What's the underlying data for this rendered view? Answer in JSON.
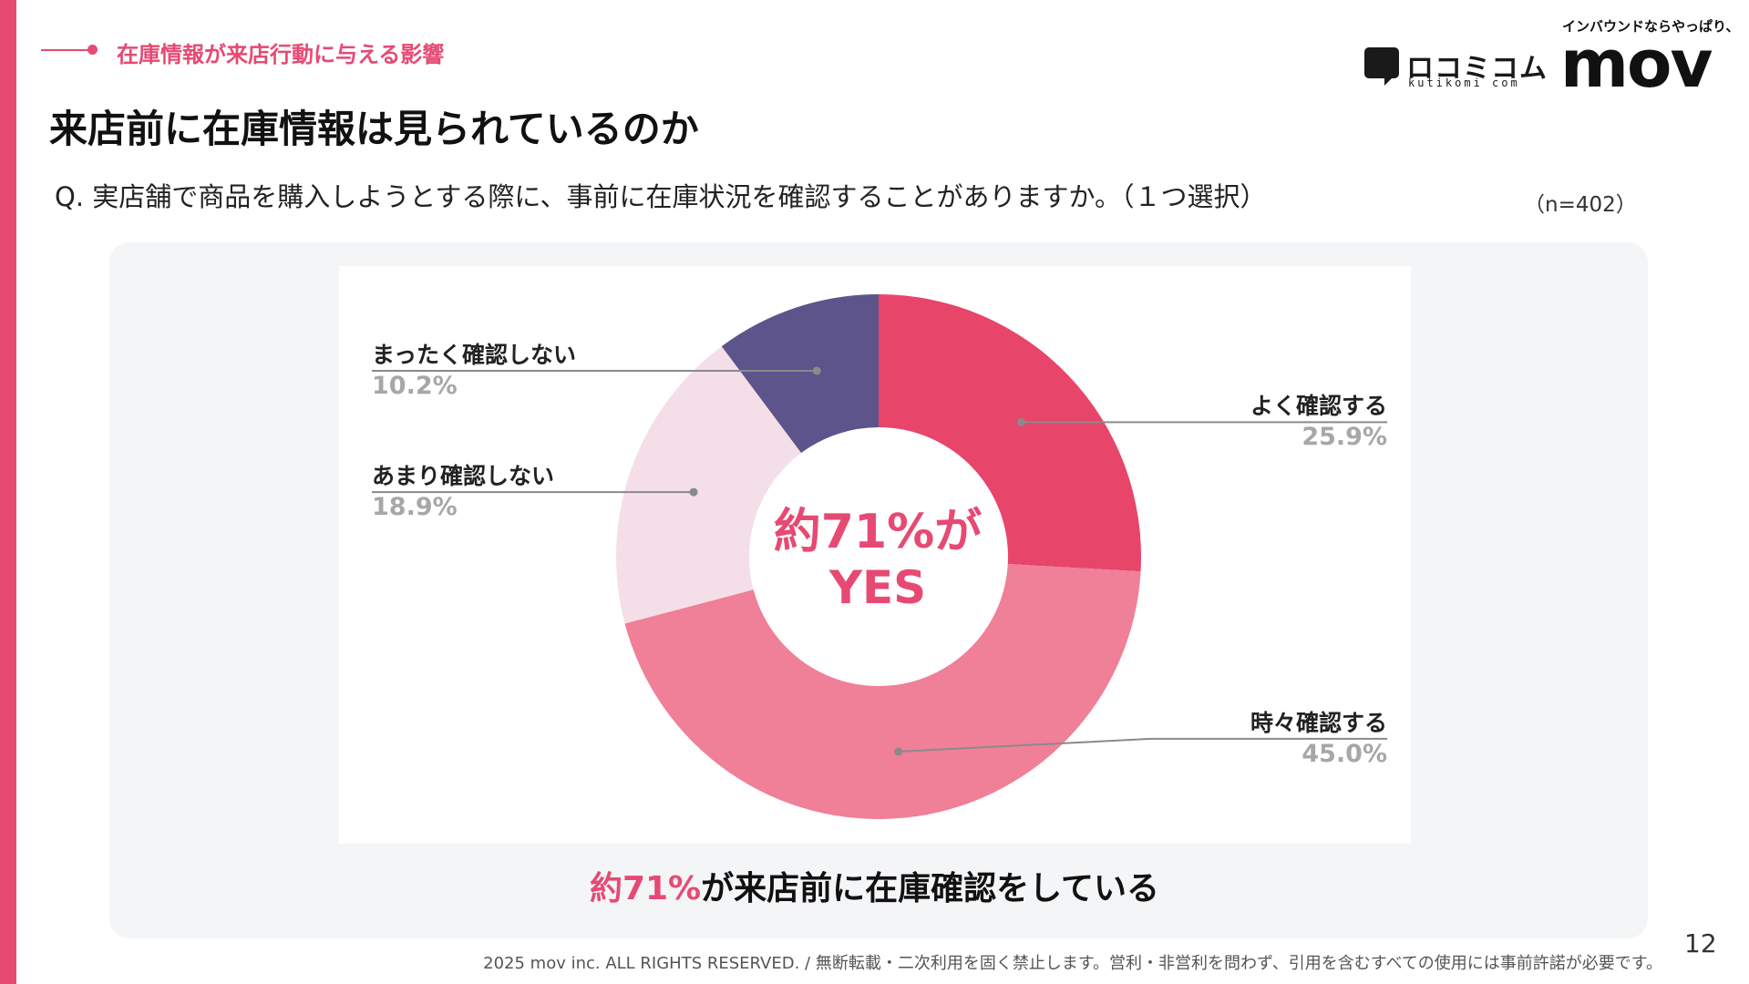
{
  "header": {
    "section_label": "在庫情報が来店行動に与える影響",
    "title": "来店前に在庫情報は見られているのか",
    "question": "Q. 実店舗で商品を購入しようとする際に、事前に在庫状況を確認することがありますか。（１つ選択）",
    "sample_size": "（n=402）"
  },
  "logos": {
    "kuchikomi_name": "ロコミコム",
    "kuchikomi_sub": "kutikomi com",
    "mov_tagline": "インバウンドならやっぱり、",
    "mov_word": "mov"
  },
  "chart_data": {
    "type": "pie",
    "donut": true,
    "categories": [
      "よく確認する",
      "時々確認する",
      "あまり確認しない",
      "まったく確認しない"
    ],
    "values": [
      25.9,
      45.0,
      18.9,
      10.2
    ],
    "value_labels": [
      "25.9%",
      "45.0%",
      "18.9%",
      "10.2%"
    ],
    "colors": [
      "#e8456b",
      "#f07f98",
      "#f4dfe8",
      "#5d548b"
    ],
    "center_text": [
      "約71%が",
      "YES"
    ],
    "label_placement": "outside-with-leader-lines"
  },
  "summary": {
    "highlight": "約71%",
    "rest": "が来店前に在庫確認をしている"
  },
  "footer": {
    "copyright": "2025 mov inc. ALL RIGHTS RESERVED. / 無断転載・二次利用を固く禁止します。営利・非営利を問わず、引用を含むすべての使用には事前許諾が必要です。",
    "page_number": "12"
  }
}
